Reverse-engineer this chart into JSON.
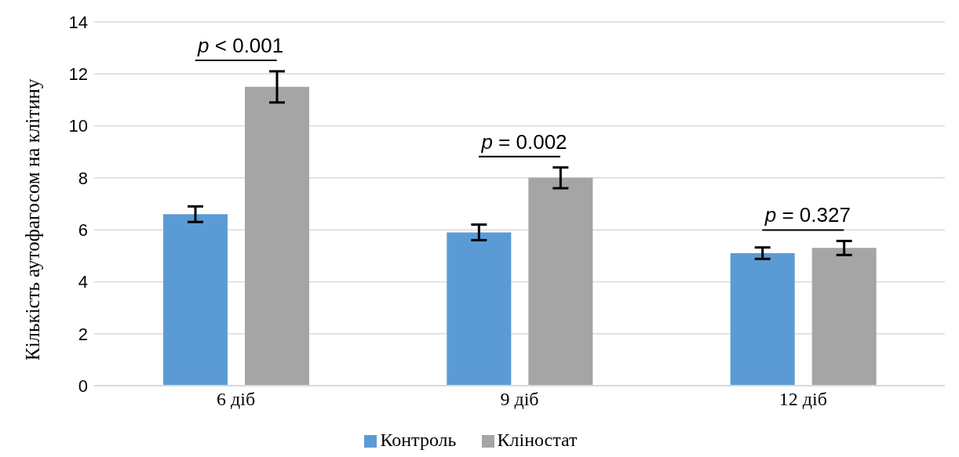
{
  "chart_data": {
    "type": "bar",
    "ylabel": "Кількість аутофагосом на клітину",
    "categories": [
      "6 діб",
      "9 діб",
      "12 діб"
    ],
    "series": [
      {
        "name": "Контроль",
        "color": "#5b9bd5",
        "values": [
          6.6,
          5.9,
          5.1
        ],
        "errors": [
          0.3,
          0.3,
          0.22
        ]
      },
      {
        "name": "Кліностат",
        "color": "#a5a5a5",
        "values": [
          11.5,
          8.0,
          5.3
        ],
        "errors": [
          0.6,
          0.4,
          0.27
        ]
      }
    ],
    "ylim": [
      0,
      14
    ],
    "yticks": [
      0,
      2,
      4,
      6,
      8,
      10,
      12,
      14
    ],
    "grid": "y",
    "legend": "bottom",
    "annotations": [
      "p < 0.001",
      "p = 0.002",
      "p = 0.327"
    ]
  }
}
